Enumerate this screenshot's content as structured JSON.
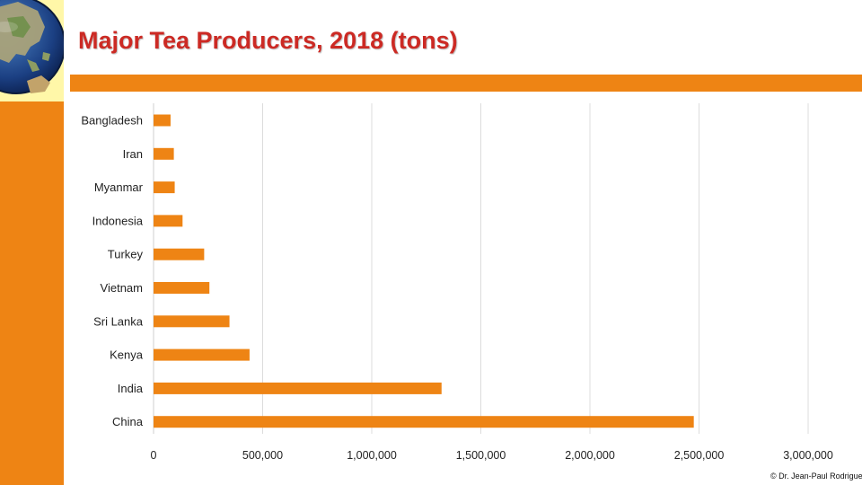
{
  "slide": {
    "title": "Major Tea Producers, 2018 (tons)",
    "credit": "© Dr. Jean-Paul Rodrigue",
    "accent_color": "#ee8414",
    "title_color": "#cc2a24",
    "logo": "globe-icon"
  },
  "chart_data": {
    "type": "bar",
    "orientation": "horizontal",
    "title": "Major Tea Producers, 2018 (tons)",
    "categories": [
      "Bangladesh",
      "Iran",
      "Myanmar",
      "Indonesia",
      "Turkey",
      "Vietnam",
      "Sri Lanka",
      "Kenya",
      "India",
      "China"
    ],
    "values": [
      78000,
      93000,
      97000,
      133000,
      232000,
      256000,
      348000,
      440000,
      1320000,
      2476000
    ],
    "xlabel": "",
    "ylabel": "",
    "xlim": [
      0,
      3000000
    ],
    "x_ticks": [
      0,
      500000,
      1000000,
      1500000,
      2000000,
      2500000,
      3000000
    ],
    "x_tick_labels": [
      "0",
      "500,000",
      "1,000,000",
      "1,500,000",
      "2,000,000",
      "2,500,000",
      "3,000,000"
    ],
    "bar_color": "#ee8414",
    "grid": true,
    "legend": "none"
  }
}
